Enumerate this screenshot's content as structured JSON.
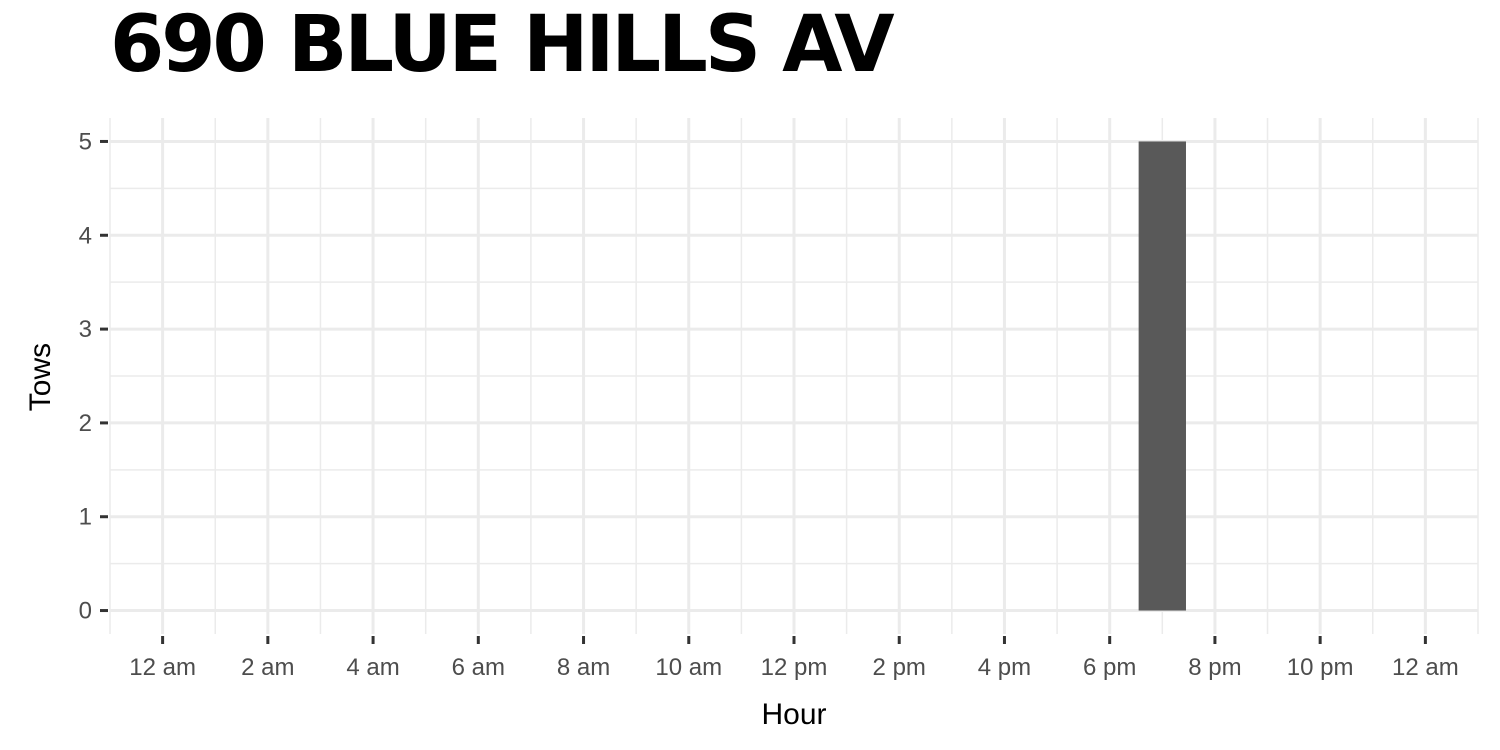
{
  "chart_data": {
    "type": "bar",
    "title": "690 BLUE HILLS AV",
    "xlabel": "Hour",
    "ylabel": "Tows",
    "x_range_hours": [
      -1,
      25
    ],
    "ylim": [
      -0.25,
      5.25
    ],
    "x_ticks": [
      {
        "hour": 0,
        "label": "12 am"
      },
      {
        "hour": 2,
        "label": "2 am"
      },
      {
        "hour": 4,
        "label": "4 am"
      },
      {
        "hour": 6,
        "label": "6 am"
      },
      {
        "hour": 8,
        "label": "8 am"
      },
      {
        "hour": 10,
        "label": "10 am"
      },
      {
        "hour": 12,
        "label": "12 pm"
      },
      {
        "hour": 14,
        "label": "2 pm"
      },
      {
        "hour": 16,
        "label": "4 pm"
      },
      {
        "hour": 18,
        "label": "6 pm"
      },
      {
        "hour": 20,
        "label": "8 pm"
      },
      {
        "hour": 22,
        "label": "10 pm"
      },
      {
        "hour": 24,
        "label": "12 am"
      }
    ],
    "y_ticks": [
      0,
      1,
      2,
      3,
      4,
      5
    ],
    "bars": [
      {
        "hour": 19,
        "value": 5
      }
    ],
    "bar_width_hours": 0.9,
    "bar_color": "#595959",
    "grid": true,
    "grid_color": "#ebebeb"
  }
}
